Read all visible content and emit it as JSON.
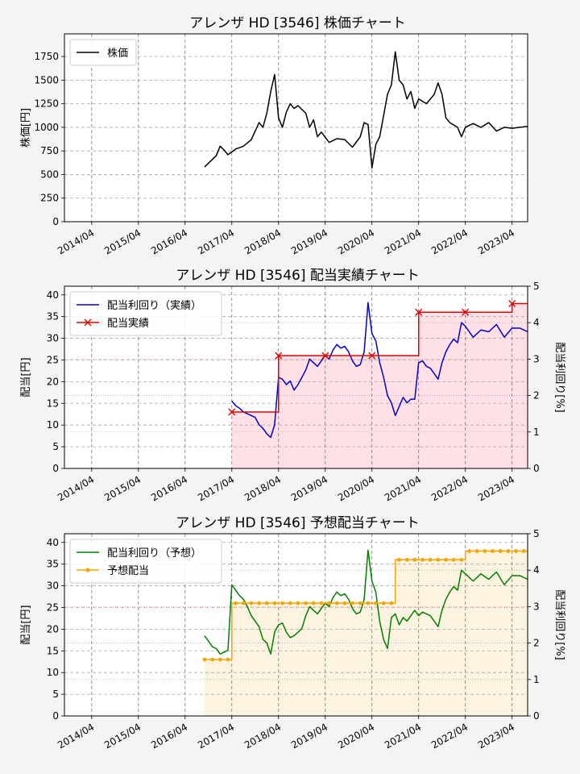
{
  "chart_data": [
    {
      "type": "line",
      "title": "アレンザ HD [3546]  株価チャート",
      "ylabel": "株価[円]",
      "xlim": [
        "2013-09",
        "2023-08"
      ],
      "ylim": [
        0,
        1990
      ],
      "yticks": [
        0,
        250,
        500,
        750,
        1000,
        1250,
        1500,
        1750
      ],
      "x_tick_labels": [
        "2014/04",
        "2015/04",
        "2016/04",
        "2017/04",
        "2018/04",
        "2019/04",
        "2020/04",
        "2021/04",
        "2022/04",
        "2023/04"
      ],
      "grid": true,
      "legend_position": "top-left",
      "series": [
        {
          "name": "株価",
          "color": "#000000",
          "points": [
            [
              "2016-09",
              580
            ],
            [
              "2016-10",
              620
            ],
            [
              "2016-12",
              700
            ],
            [
              "2017-01",
              800
            ],
            [
              "2017-02",
              760
            ],
            [
              "2017-03",
              710
            ],
            [
              "2017-05",
              770
            ],
            [
              "2017-07",
              800
            ],
            [
              "2017-09",
              870
            ],
            [
              "2017-11",
              1050
            ],
            [
              "2017-12",
              1000
            ],
            [
              "2018-01",
              1150
            ],
            [
              "2018-02",
              1380
            ],
            [
              "2018-03",
              1560
            ],
            [
              "2018-04",
              1100
            ],
            [
              "2018-05",
              1000
            ],
            [
              "2018-06",
              1160
            ],
            [
              "2018-07",
              1250
            ],
            [
              "2018-08",
              1200
            ],
            [
              "2018-09",
              1230
            ],
            [
              "2018-11",
              1150
            ],
            [
              "2018-12",
              1000
            ],
            [
              "2019-01",
              1080
            ],
            [
              "2019-02",
              900
            ],
            [
              "2019-03",
              950
            ],
            [
              "2019-05",
              840
            ],
            [
              "2019-07",
              880
            ],
            [
              "2019-09",
              870
            ],
            [
              "2019-11",
              790
            ],
            [
              "2020-01",
              900
            ],
            [
              "2020-02",
              1050
            ],
            [
              "2020-03",
              1030
            ],
            [
              "2020-04",
              570
            ],
            [
              "2020-05",
              820
            ],
            [
              "2020-06",
              900
            ],
            [
              "2020-08",
              1350
            ],
            [
              "2020-09",
              1450
            ],
            [
              "2020-10",
              1800
            ],
            [
              "2020-11",
              1500
            ],
            [
              "2020-12",
              1450
            ],
            [
              "2021-01",
              1300
            ],
            [
              "2021-02",
              1380
            ],
            [
              "2021-03",
              1200
            ],
            [
              "2021-04",
              1300
            ],
            [
              "2021-06",
              1250
            ],
            [
              "2021-08",
              1350
            ],
            [
              "2021-09",
              1470
            ],
            [
              "2021-10",
              1350
            ],
            [
              "2021-11",
              1100
            ],
            [
              "2021-12",
              1050
            ],
            [
              "2022-02",
              1000
            ],
            [
              "2022-03",
              900
            ],
            [
              "2022-04",
              1000
            ],
            [
              "2022-06",
              1040
            ],
            [
              "2022-08",
              1000
            ],
            [
              "2022-10",
              1050
            ],
            [
              "2022-12",
              960
            ],
            [
              "2023-02",
              1000
            ],
            [
              "2023-04",
              990
            ],
            [
              "2023-06",
              1000
            ],
            [
              "2023-08",
              1010
            ]
          ]
        }
      ]
    },
    {
      "type": "line",
      "title": "アレンザ HD [3546]  配当実績チャート",
      "ylabel": "配当[円]",
      "y2label": "配当利回り[%]",
      "xlim": [
        "2013-09",
        "2023-08"
      ],
      "ylim": [
        0,
        42
      ],
      "y2lim": [
        0,
        5
      ],
      "yticks": [
        0,
        5,
        10,
        15,
        20,
        25,
        30,
        35,
        40
      ],
      "y2ticks": [
        0,
        1,
        2,
        3,
        4,
        5
      ],
      "x_tick_labels": [
        "2014/04",
        "2015/04",
        "2016/04",
        "2017/04",
        "2018/04",
        "2019/04",
        "2020/04",
        "2021/04",
        "2022/04",
        "2023/04"
      ],
      "grid": true,
      "legend_position": "top-left",
      "fill_color": "#ffe0e6",
      "series": [
        {
          "name": "配当利回り（実績）",
          "color": "#0000cc",
          "axis": "right",
          "points": [
            [
              "2017-04",
              1.85
            ],
            [
              "2017-05",
              1.72
            ],
            [
              "2017-06",
              1.65
            ],
            [
              "2017-07",
              1.55
            ],
            [
              "2017-08",
              1.5
            ],
            [
              "2017-09",
              1.45
            ],
            [
              "2017-10",
              1.4
            ],
            [
              "2017-11",
              1.2
            ],
            [
              "2017-12",
              1.1
            ],
            [
              "2018-01",
              0.95
            ],
            [
              "2018-02",
              0.85
            ],
            [
              "2018-03",
              1.2
            ],
            [
              "2018-04",
              2.5
            ],
            [
              "2018-05",
              2.45
            ],
            [
              "2018-06",
              2.3
            ],
            [
              "2018-07",
              2.4
            ],
            [
              "2018-08",
              2.15
            ],
            [
              "2018-09",
              2.3
            ],
            [
              "2018-10",
              2.5
            ],
            [
              "2018-11",
              2.7
            ],
            [
              "2018-12",
              3.0
            ],
            [
              "2019-01",
              2.9
            ],
            [
              "2019-02",
              2.8
            ],
            [
              "2019-04",
              3.1
            ],
            [
              "2019-05",
              3.0
            ],
            [
              "2019-06",
              3.25
            ],
            [
              "2019-07",
              3.4
            ],
            [
              "2019-08",
              3.3
            ],
            [
              "2019-09",
              3.35
            ],
            [
              "2019-10",
              3.2
            ],
            [
              "2019-11",
              2.95
            ],
            [
              "2019-12",
              2.8
            ],
            [
              "2020-01",
              2.85
            ],
            [
              "2020-02",
              3.2
            ],
            [
              "2020-03",
              4.55
            ],
            [
              "2020-04",
              3.7
            ],
            [
              "2020-05",
              3.5
            ],
            [
              "2020-06",
              2.9
            ],
            [
              "2020-07",
              2.5
            ],
            [
              "2020-08",
              2.0
            ],
            [
              "2020-09",
              1.8
            ],
            [
              "2020-10",
              1.45
            ],
            [
              "2020-11",
              1.7
            ],
            [
              "2020-12",
              1.95
            ],
            [
              "2021-01",
              1.8
            ],
            [
              "2021-02",
              1.9
            ],
            [
              "2021-03",
              1.9
            ],
            [
              "2021-04",
              2.9
            ],
            [
              "2021-05",
              2.95
            ],
            [
              "2021-06",
              2.8
            ],
            [
              "2021-07",
              2.75
            ],
            [
              "2021-08",
              2.6
            ],
            [
              "2021-09",
              2.45
            ],
            [
              "2021-10",
              2.9
            ],
            [
              "2021-11",
              3.2
            ],
            [
              "2021-12",
              3.4
            ],
            [
              "2022-01",
              3.55
            ],
            [
              "2022-02",
              3.45
            ],
            [
              "2022-03",
              4.0
            ],
            [
              "2022-04",
              3.9
            ],
            [
              "2022-06",
              3.6
            ],
            [
              "2022-08",
              3.8
            ],
            [
              "2022-10",
              3.75
            ],
            [
              "2022-12",
              3.95
            ],
            [
              "2023-02",
              3.6
            ],
            [
              "2023-04",
              3.85
            ],
            [
              "2023-06",
              3.85
            ],
            [
              "2023-08",
              3.75
            ]
          ]
        },
        {
          "name": "配当実績",
          "color": "#e00000",
          "axis": "left",
          "step": true,
          "markers": "x",
          "points": [
            [
              "2017-04",
              13
            ],
            [
              "2018-04",
              26
            ],
            [
              "2019-04",
              26
            ],
            [
              "2020-04",
              26
            ],
            [
              "2021-04",
              36
            ],
            [
              "2022-04",
              36
            ],
            [
              "2023-04",
              38
            ],
            [
              "2023-08",
              38
            ]
          ]
        }
      ]
    },
    {
      "type": "line",
      "title": "アレンザ HD [3546]  予想配当チャート",
      "ylabel": "配当[円]",
      "y2label": "配当利回り[%]",
      "xlim": [
        "2013-09",
        "2023-08"
      ],
      "ylim": [
        0,
        42
      ],
      "y2lim": [
        0,
        5
      ],
      "yticks": [
        0,
        5,
        10,
        15,
        20,
        25,
        30,
        35,
        40
      ],
      "y2ticks": [
        0,
        1,
        2,
        3,
        4,
        5
      ],
      "x_tick_labels": [
        "2014/04",
        "2015/04",
        "2016/04",
        "2017/04",
        "2018/04",
        "2019/04",
        "2020/04",
        "2021/04",
        "2022/04",
        "2023/04"
      ],
      "grid": true,
      "legend_position": "top-left",
      "fill_color": "#fdf3e1",
      "series": [
        {
          "name": "配当利回り（予想）",
          "color": "#008000",
          "axis": "right",
          "points": [
            [
              "2016-09",
              2.2
            ],
            [
              "2016-10",
              2.05
            ],
            [
              "2016-11",
              1.9
            ],
            [
              "2016-12",
              1.85
            ],
            [
              "2017-01",
              1.7
            ],
            [
              "2017-02",
              1.75
            ],
            [
              "2017-03",
              1.8
            ],
            [
              "2017-04",
              3.6
            ],
            [
              "2017-05",
              3.45
            ],
            [
              "2017-06",
              3.3
            ],
            [
              "2017-07",
              3.2
            ],
            [
              "2017-08",
              3.0
            ],
            [
              "2017-09",
              2.75
            ],
            [
              "2017-10",
              2.6
            ],
            [
              "2017-11",
              2.45
            ],
            [
              "2017-12",
              2.1
            ],
            [
              "2018-01",
              2.0
            ],
            [
              "2018-02",
              1.7
            ],
            [
              "2018-03",
              2.3
            ],
            [
              "2018-04",
              2.5
            ],
            [
              "2018-05",
              2.55
            ],
            [
              "2018-06",
              2.3
            ],
            [
              "2018-07",
              2.15
            ],
            [
              "2018-08",
              2.2
            ],
            [
              "2018-09",
              2.3
            ],
            [
              "2018-10",
              2.4
            ],
            [
              "2018-11",
              2.75
            ],
            [
              "2018-12",
              3.0
            ],
            [
              "2019-01",
              2.9
            ],
            [
              "2019-02",
              2.8
            ],
            [
              "2019-04",
              3.1
            ],
            [
              "2019-05",
              3.0
            ],
            [
              "2019-06",
              3.25
            ],
            [
              "2019-07",
              3.4
            ],
            [
              "2019-08",
              3.3
            ],
            [
              "2019-09",
              3.35
            ],
            [
              "2019-10",
              3.2
            ],
            [
              "2019-11",
              2.95
            ],
            [
              "2019-12",
              2.8
            ],
            [
              "2020-01",
              2.85
            ],
            [
              "2020-02",
              3.2
            ],
            [
              "2020-03",
              4.55
            ],
            [
              "2020-04",
              3.7
            ],
            [
              "2020-05",
              3.4
            ],
            [
              "2020-06",
              2.6
            ],
            [
              "2020-07",
              2.1
            ],
            [
              "2020-08",
              1.85
            ],
            [
              "2020-09",
              2.7
            ],
            [
              "2020-10",
              2.8
            ],
            [
              "2020-11",
              2.5
            ],
            [
              "2020-12",
              2.7
            ],
            [
              "2021-01",
              2.6
            ],
            [
              "2021-02",
              2.75
            ],
            [
              "2021-03",
              2.9
            ],
            [
              "2021-04",
              2.75
            ],
            [
              "2021-05",
              2.85
            ],
            [
              "2021-06",
              2.8
            ],
            [
              "2021-07",
              2.75
            ],
            [
              "2021-08",
              2.6
            ],
            [
              "2021-09",
              2.45
            ],
            [
              "2021-10",
              2.9
            ],
            [
              "2021-11",
              3.2
            ],
            [
              "2021-12",
              3.4
            ],
            [
              "2022-01",
              3.55
            ],
            [
              "2022-02",
              3.45
            ],
            [
              "2022-03",
              4.0
            ],
            [
              "2022-04",
              3.9
            ],
            [
              "2022-06",
              3.7
            ],
            [
              "2022-08",
              3.9
            ],
            [
              "2022-10",
              3.75
            ],
            [
              "2022-12",
              3.95
            ],
            [
              "2023-02",
              3.6
            ],
            [
              "2023-04",
              3.85
            ],
            [
              "2023-06",
              3.85
            ],
            [
              "2023-08",
              3.75
            ]
          ]
        },
        {
          "name": "予想配当",
          "color": "#f5a500",
          "axis": "left",
          "step": true,
          "markers": "dot",
          "points": [
            [
              "2016-09",
              13
            ],
            [
              "2017-04",
              26
            ],
            [
              "2020-10",
              36
            ],
            [
              "2022-04",
              38
            ],
            [
              "2023-08",
              38
            ]
          ]
        }
      ]
    }
  ]
}
